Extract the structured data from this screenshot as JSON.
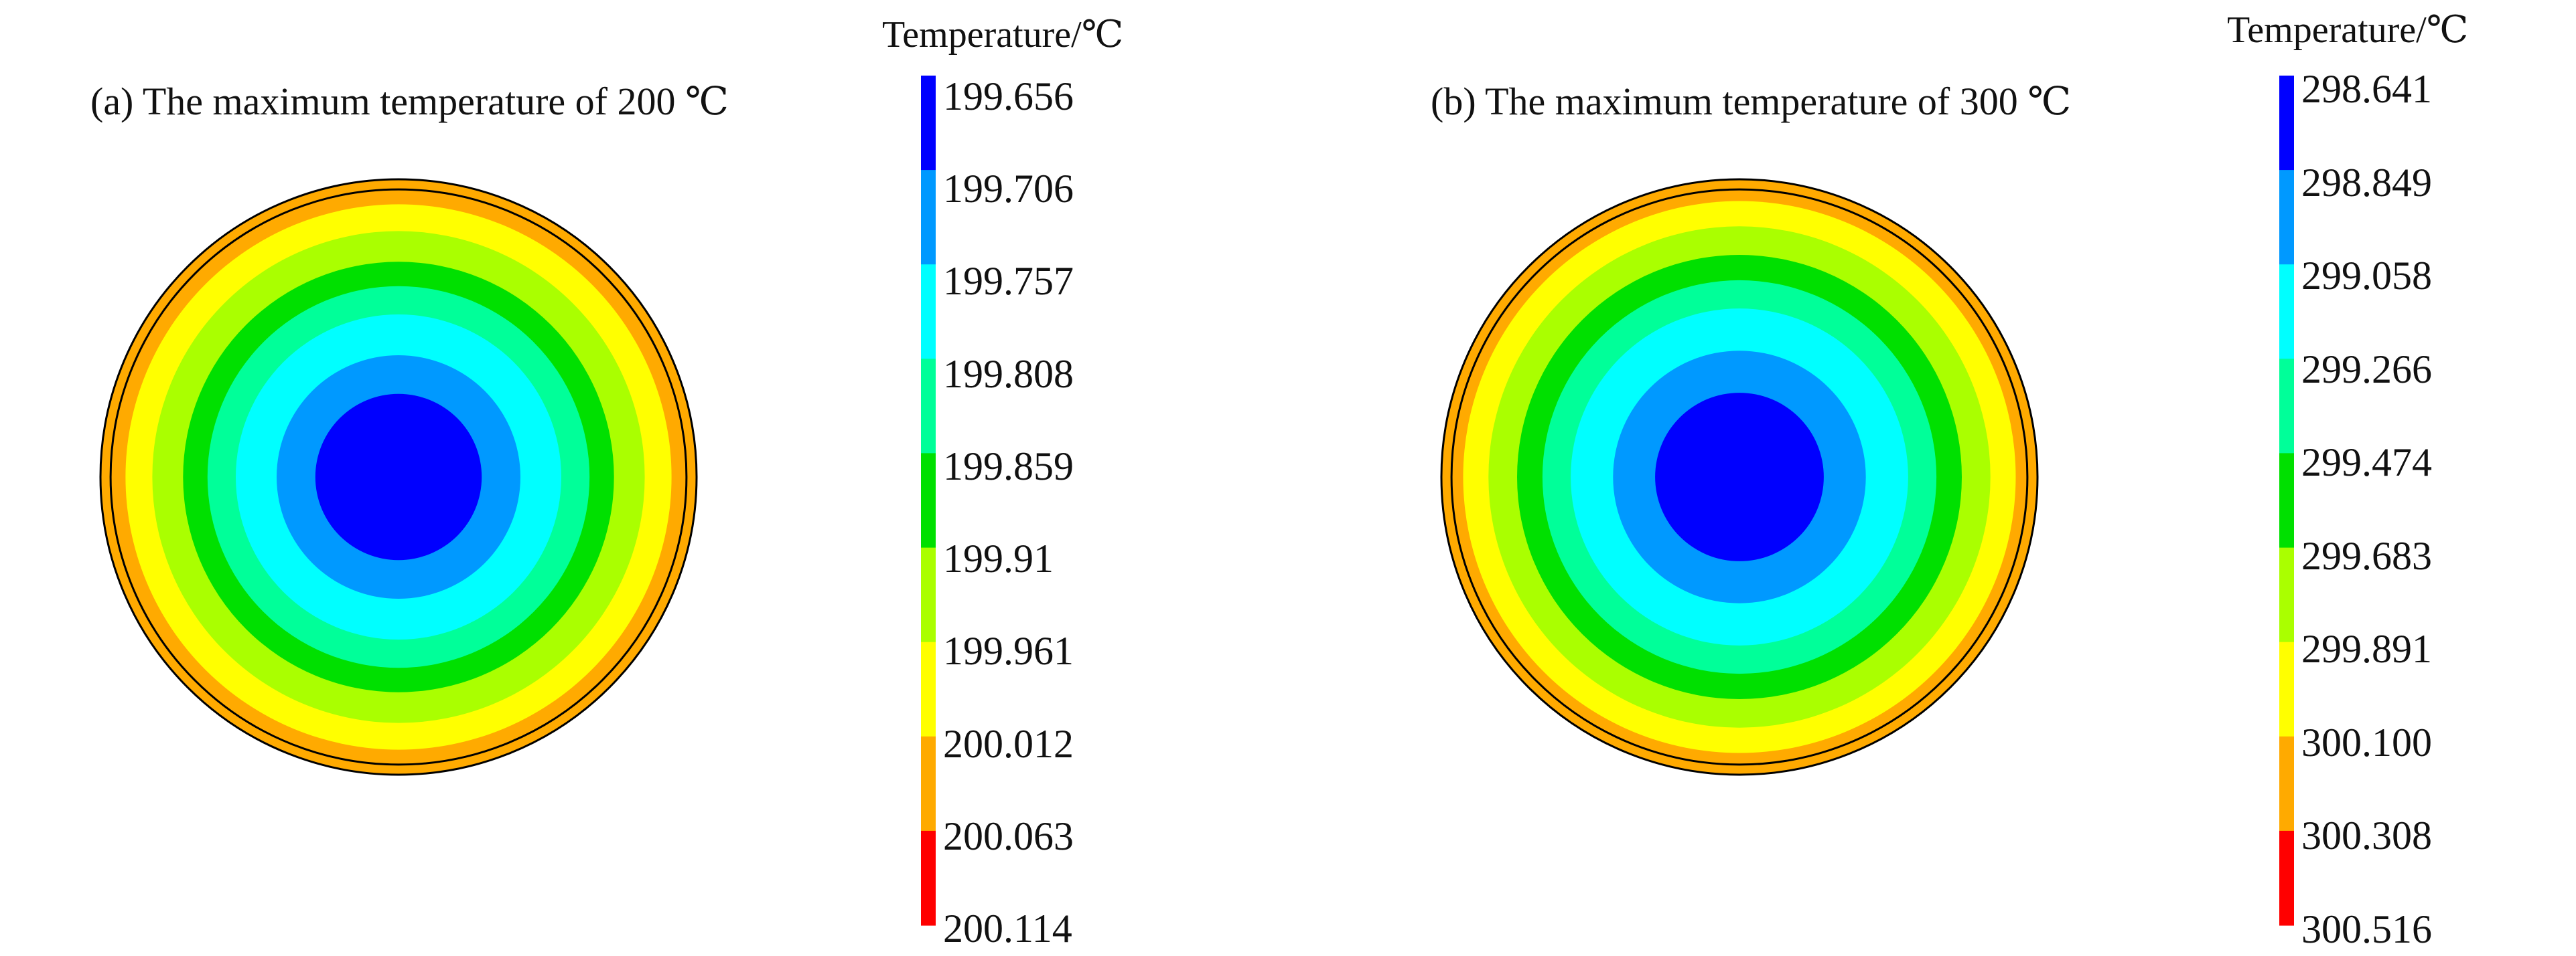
{
  "figure": {
    "palette": [
      "#0000ff",
      "#0099ff",
      "#00ffff",
      "#00ff99",
      "#00e000",
      "#aaff00",
      "#ffff00",
      "#ffaa00",
      "#ff0000"
    ],
    "outline_color": "#000000",
    "panels": [
      {
        "id": "a",
        "title": "(a) The maximum temperature of 200 ℃",
        "legend": {
          "title": "Temperature/℃",
          "ticks": [
            "199.656",
            "199.706",
            "199.757",
            "199.808",
            "199.859",
            "199.91",
            "199.961",
            "200.012",
            "200.063",
            "200.114"
          ]
        },
        "contour": {
          "band_radius_fraction": [
            0.279,
            0.409,
            0.546,
            0.641,
            0.723,
            0.826,
            0.916,
            1.0,
            1.0
          ],
          "inner_outline_radius_fraction": 0.966
        }
      },
      {
        "id": "b",
        "title": "(b) The maximum temperature of 300 ℃",
        "legend": {
          "title": "Temperature/℃",
          "ticks": [
            "298.641",
            "298.849",
            "299.058",
            "299.266",
            "299.474",
            "299.683",
            "299.891",
            "300.100",
            "300.308",
            "300.516"
          ]
        },
        "contour": {
          "band_radius_fraction": [
            0.283,
            0.424,
            0.566,
            0.661,
            0.746,
            0.842,
            0.927,
            1.0,
            1.0
          ],
          "inner_outline_radius_fraction": 0.966
        }
      }
    ]
  }
}
